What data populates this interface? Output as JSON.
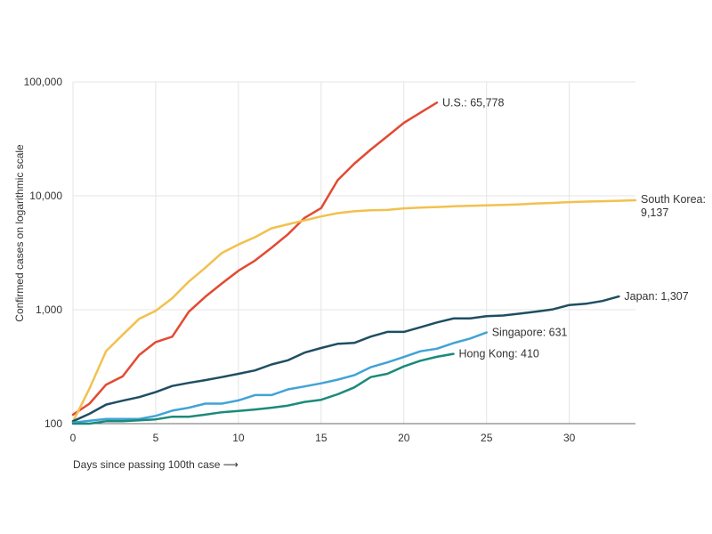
{
  "chart_data": {
    "type": "line",
    "title": "",
    "xlabel": "Days since passing 100th case ⟶",
    "ylabel": "Confirmed cases on logarithmic scale",
    "y_scale": "log",
    "xlim": [
      0,
      34
    ],
    "ylim": [
      100,
      100000
    ],
    "x_ticks": [
      0,
      5,
      10,
      15,
      20,
      25,
      30
    ],
    "x_tick_labels": [
      "0",
      "5",
      "10",
      "15",
      "20",
      "25",
      "30"
    ],
    "y_ticks": [
      100,
      1000,
      10000,
      100000
    ],
    "y_tick_labels": [
      "100",
      "1,000",
      "10,000",
      "100,000"
    ],
    "grid": true,
    "legend": "end-of-line labels",
    "series": [
      {
        "name": "U.S.",
        "end_label": [
          "U.S.: 65,778"
        ],
        "color": "#e34a33",
        "x": [
          0,
          1,
          2,
          3,
          4,
          5,
          6,
          7,
          8,
          9,
          10,
          11,
          12,
          13,
          14,
          15,
          16,
          17,
          18,
          19,
          20,
          21,
          22
        ],
        "values": [
          120,
          150,
          220,
          260,
          400,
          520,
          580,
          960,
          1300,
          1700,
          2200,
          2700,
          3500,
          4600,
          6400,
          7800,
          13700,
          19100,
          25500,
          33300,
          43700,
          53700,
          65778
        ]
      },
      {
        "name": "South Korea",
        "end_label": [
          "South Korea:",
          "9,137"
        ],
        "color": "#f2c14e",
        "x": [
          0,
          1,
          2,
          3,
          4,
          5,
          6,
          7,
          8,
          9,
          10,
          11,
          12,
          13,
          14,
          15,
          16,
          17,
          18,
          19,
          20,
          21,
          22,
          23,
          24,
          25,
          26,
          27,
          28,
          29,
          30,
          31,
          32,
          33,
          34
        ],
        "values": [
          104,
          204,
          433,
          602,
          833,
          977,
          1261,
          1766,
          2337,
          3150,
          3736,
          4335,
          5186,
          5621,
          6088,
          6593,
          7041,
          7313,
          7478,
          7513,
          7755,
          7869,
          7979,
          8086,
          8162,
          8236,
          8320,
          8413,
          8565,
          8652,
          8799,
          8897,
          8961,
          9037,
          9137
        ]
      },
      {
        "name": "Japan",
        "end_label": [
          "Japan: 1,307"
        ],
        "color": "#1f4e63",
        "x": [
          0,
          1,
          2,
          3,
          4,
          5,
          6,
          7,
          8,
          9,
          10,
          11,
          12,
          13,
          14,
          15,
          16,
          17,
          18,
          19,
          20,
          21,
          22,
          23,
          24,
          25,
          26,
          27,
          28,
          29,
          30,
          31,
          32,
          33
        ],
        "values": [
          105,
          122,
          147,
          159,
          171,
          189,
          214,
          228,
          241,
          256,
          274,
          293,
          331,
          360,
          420,
          461,
          502,
          511,
          581,
          639,
          639,
          701,
          773,
          839,
          839,
          878,
          889,
          924,
          963,
          1007,
          1101,
          1128,
          1193,
          1307
        ]
      },
      {
        "name": "Singapore",
        "end_label": [
          "Singapore: 631"
        ],
        "color": "#41a3d6",
        "x": [
          0,
          1,
          2,
          3,
          4,
          5,
          6,
          7,
          8,
          9,
          10,
          11,
          12,
          13,
          14,
          15,
          16,
          17,
          18,
          19,
          20,
          21,
          22,
          23,
          24,
          25
        ],
        "values": [
          102,
          106,
          110,
          110,
          110,
          117,
          130,
          138,
          150,
          150,
          160,
          178,
          178,
          200,
          212,
          226,
          243,
          266,
          313,
          345,
          385,
          432,
          455,
          509,
          558,
          631
        ]
      },
      {
        "name": "Hong Kong",
        "end_label": [
          "Hong Kong: 410"
        ],
        "color": "#1b8a7a",
        "x": [
          0,
          1,
          2,
          3,
          4,
          5,
          6,
          7,
          8,
          9,
          10,
          11,
          12,
          13,
          14,
          15,
          16,
          17,
          18,
          19,
          20,
          21,
          22,
          23
        ],
        "values": [
          100,
          100,
          105,
          105,
          107,
          109,
          115,
          115,
          120,
          126,
          129,
          133,
          138,
          144,
          155,
          162,
          181,
          208,
          256,
          274,
          318,
          357,
          386,
          410
        ]
      }
    ]
  }
}
